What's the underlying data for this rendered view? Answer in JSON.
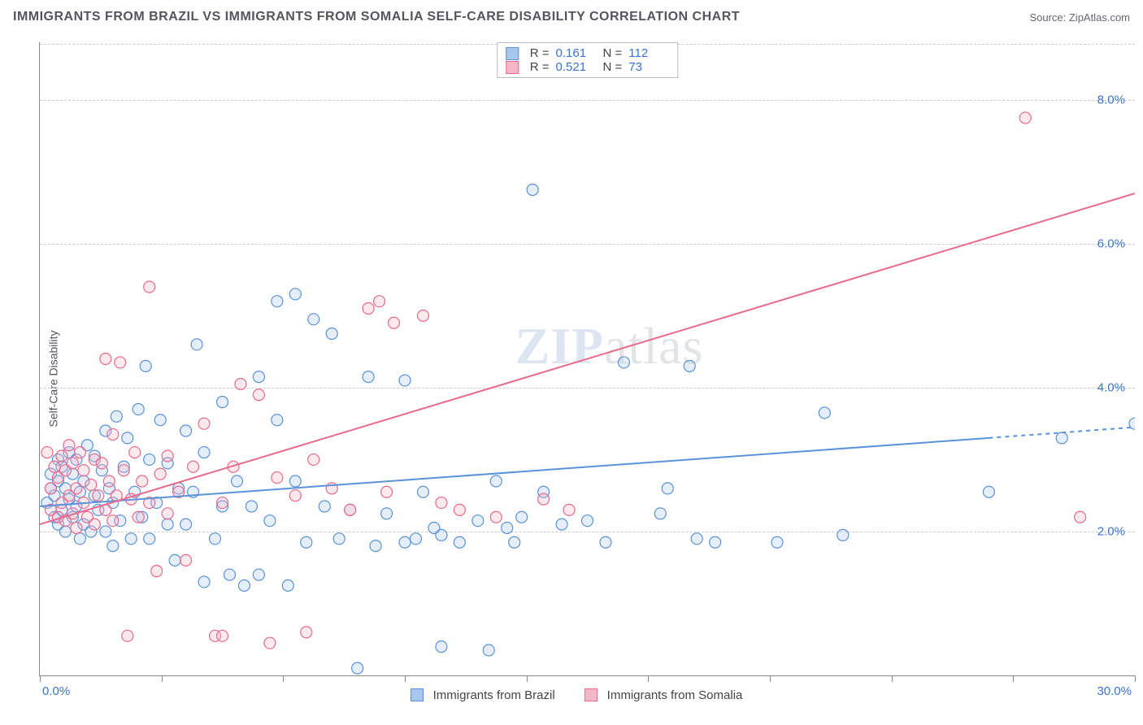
{
  "title": "IMMIGRANTS FROM BRAZIL VS IMMIGRANTS FROM SOMALIA SELF-CARE DISABILITY CORRELATION CHART",
  "source": "Source: ZipAtlas.com",
  "ylabel": "Self-Care Disability",
  "watermark_a": "ZIP",
  "watermark_b": "atlas",
  "chart": {
    "type": "scatter",
    "xlim": [
      0,
      30
    ],
    "ylim": [
      0,
      8.8
    ],
    "background_color": "#ffffff",
    "grid_color": "#cccccc",
    "grid_dash": "4 4",
    "y_gridlines": [
      2,
      4,
      6,
      8
    ],
    "y_tick_labels": [
      "2.0%",
      "4.0%",
      "6.0%",
      "8.0%"
    ],
    "x_minor_ticks": [
      0,
      3.33,
      6.67,
      10,
      13.33,
      16.67,
      20,
      23.33,
      26.67,
      30
    ],
    "x_axis_left_label": "0.0%",
    "x_axis_right_label": "30.0%",
    "axis_label_color": "#3973d4",
    "axis_label_fontsize": 15,
    "marker_radius": 7,
    "marker_stroke_width": 1.2,
    "marker_fill_opacity": 0.3,
    "line_width": 2,
    "series": [
      {
        "id": "brazil",
        "label": "Immigrants from Brazil",
        "color_stroke": "#5a93d8",
        "color_fill": "#a8c7ec",
        "R": "0.161",
        "N": "112",
        "trend": {
          "x0": 0,
          "y0": 2.35,
          "x1": 26,
          "y1": 3.3,
          "x_dash_to": 30,
          "y_dash_to": 3.45
        },
        "points": [
          [
            0.2,
            2.4
          ],
          [
            0.3,
            2.6
          ],
          [
            0.3,
            2.8
          ],
          [
            0.4,
            2.2
          ],
          [
            0.4,
            2.5
          ],
          [
            0.5,
            3.0
          ],
          [
            0.5,
            2.1
          ],
          [
            0.5,
            2.7
          ],
          [
            0.6,
            2.9
          ],
          [
            0.6,
            2.3
          ],
          [
            0.7,
            2.0
          ],
          [
            0.7,
            2.6
          ],
          [
            0.8,
            3.1
          ],
          [
            0.8,
            2.45
          ],
          [
            0.9,
            2.2
          ],
          [
            0.9,
            2.8
          ],
          [
            1.0,
            2.35
          ],
          [
            1.0,
            3.0
          ],
          [
            1.1,
            1.9
          ],
          [
            1.1,
            2.55
          ],
          [
            1.2,
            2.7
          ],
          [
            1.2,
            2.1
          ],
          [
            1.3,
            3.2
          ],
          [
            1.4,
            2.0
          ],
          [
            1.5,
            2.5
          ],
          [
            1.5,
            3.05
          ],
          [
            1.6,
            2.3
          ],
          [
            1.7,
            2.85
          ],
          [
            1.8,
            2.0
          ],
          [
            1.8,
            3.4
          ],
          [
            1.9,
            2.6
          ],
          [
            2.0,
            1.8
          ],
          [
            2.0,
            2.4
          ],
          [
            2.1,
            3.6
          ],
          [
            2.2,
            2.15
          ],
          [
            2.3,
            2.9
          ],
          [
            2.4,
            3.3
          ],
          [
            2.5,
            1.9
          ],
          [
            2.6,
            2.55
          ],
          [
            2.7,
            3.7
          ],
          [
            2.8,
            2.2
          ],
          [
            2.9,
            4.3
          ],
          [
            3.0,
            1.9
          ],
          [
            3.0,
            3.0
          ],
          [
            3.2,
            2.4
          ],
          [
            3.3,
            3.55
          ],
          [
            3.5,
            2.1
          ],
          [
            3.5,
            2.95
          ],
          [
            3.7,
            1.6
          ],
          [
            3.8,
            2.6
          ],
          [
            4.0,
            3.4
          ],
          [
            4.0,
            2.1
          ],
          [
            4.2,
            2.55
          ],
          [
            4.3,
            4.6
          ],
          [
            4.5,
            1.3
          ],
          [
            4.5,
            3.1
          ],
          [
            4.8,
            1.9
          ],
          [
            5.0,
            2.35
          ],
          [
            5.0,
            3.8
          ],
          [
            5.2,
            1.4
          ],
          [
            5.4,
            2.7
          ],
          [
            5.6,
            1.25
          ],
          [
            5.8,
            2.35
          ],
          [
            6.0,
            4.15
          ],
          [
            6.0,
            1.4
          ],
          [
            6.3,
            2.15
          ],
          [
            6.5,
            3.55
          ],
          [
            6.5,
            5.2
          ],
          [
            6.8,
            1.25
          ],
          [
            7.0,
            5.3
          ],
          [
            7.0,
            2.7
          ],
          [
            7.3,
            1.85
          ],
          [
            7.5,
            4.95
          ],
          [
            7.8,
            2.35
          ],
          [
            8.0,
            4.75
          ],
          [
            8.2,
            1.9
          ],
          [
            8.5,
            2.3
          ],
          [
            8.7,
            0.1
          ],
          [
            9.0,
            4.15
          ],
          [
            9.2,
            1.8
          ],
          [
            9.5,
            2.25
          ],
          [
            10.0,
            4.1
          ],
          [
            10.0,
            1.85
          ],
          [
            10.3,
            1.9
          ],
          [
            10.5,
            2.55
          ],
          [
            10.8,
            2.05
          ],
          [
            11.0,
            1.95
          ],
          [
            11.0,
            0.4
          ],
          [
            11.5,
            1.85
          ],
          [
            12.0,
            2.15
          ],
          [
            12.3,
            0.35
          ],
          [
            12.5,
            2.7
          ],
          [
            12.8,
            2.05
          ],
          [
            13.0,
            1.85
          ],
          [
            13.2,
            2.2
          ],
          [
            13.5,
            6.75
          ],
          [
            13.8,
            2.55
          ],
          [
            14.3,
            2.1
          ],
          [
            15.0,
            2.15
          ],
          [
            15.5,
            1.85
          ],
          [
            16.0,
            4.35
          ],
          [
            17.0,
            2.25
          ],
          [
            17.2,
            2.6
          ],
          [
            17.8,
            4.3
          ],
          [
            18.0,
            1.9
          ],
          [
            18.5,
            1.85
          ],
          [
            20.2,
            1.85
          ],
          [
            21.5,
            3.65
          ],
          [
            22.0,
            1.95
          ],
          [
            26.0,
            2.55
          ],
          [
            28.0,
            3.3
          ],
          [
            30.0,
            3.5
          ]
        ]
      },
      {
        "id": "somalia",
        "label": "Immigrants from Somalia",
        "color_stroke": "#e86a8c",
        "color_fill": "#f5b7c8",
        "R": "0.521",
        "N": "73",
        "trend": {
          "x0": 0,
          "y0": 2.1,
          "x1": 30,
          "y1": 6.7
        },
        "points": [
          [
            0.2,
            3.1
          ],
          [
            0.3,
            2.6
          ],
          [
            0.3,
            2.3
          ],
          [
            0.4,
            2.9
          ],
          [
            0.5,
            2.2
          ],
          [
            0.5,
            2.75
          ],
          [
            0.6,
            3.05
          ],
          [
            0.6,
            2.4
          ],
          [
            0.7,
            2.15
          ],
          [
            0.7,
            2.85
          ],
          [
            0.8,
            2.5
          ],
          [
            0.8,
            3.2
          ],
          [
            0.9,
            2.25
          ],
          [
            0.9,
            2.95
          ],
          [
            1.0,
            2.6
          ],
          [
            1.0,
            2.05
          ],
          [
            1.1,
            3.1
          ],
          [
            1.2,
            2.4
          ],
          [
            1.2,
            2.85
          ],
          [
            1.3,
            2.2
          ],
          [
            1.4,
            2.65
          ],
          [
            1.5,
            3.0
          ],
          [
            1.5,
            2.1
          ],
          [
            1.6,
            2.5
          ],
          [
            1.7,
            2.95
          ],
          [
            1.8,
            2.3
          ],
          [
            1.8,
            4.4
          ],
          [
            1.9,
            2.7
          ],
          [
            2.0,
            2.15
          ],
          [
            2.0,
            3.35
          ],
          [
            2.1,
            2.5
          ],
          [
            2.2,
            4.35
          ],
          [
            2.3,
            2.85
          ],
          [
            2.4,
            0.55
          ],
          [
            2.5,
            2.45
          ],
          [
            2.6,
            3.1
          ],
          [
            2.7,
            2.2
          ],
          [
            2.8,
            2.7
          ],
          [
            3.0,
            2.4
          ],
          [
            3.0,
            5.4
          ],
          [
            3.2,
            1.45
          ],
          [
            3.3,
            2.8
          ],
          [
            3.5,
            2.25
          ],
          [
            3.5,
            3.05
          ],
          [
            3.8,
            2.55
          ],
          [
            4.0,
            1.6
          ],
          [
            4.2,
            2.9
          ],
          [
            4.5,
            3.5
          ],
          [
            4.8,
            0.55
          ],
          [
            5.0,
            2.4
          ],
          [
            5.0,
            0.55
          ],
          [
            5.3,
            2.9
          ],
          [
            5.5,
            4.05
          ],
          [
            6.0,
            3.9
          ],
          [
            6.3,
            0.45
          ],
          [
            6.5,
            2.75
          ],
          [
            7.0,
            2.5
          ],
          [
            7.3,
            0.6
          ],
          [
            7.5,
            3.0
          ],
          [
            8.0,
            2.6
          ],
          [
            8.5,
            2.3
          ],
          [
            9.0,
            5.1
          ],
          [
            9.3,
            5.2
          ],
          [
            9.5,
            2.55
          ],
          [
            9.7,
            4.9
          ],
          [
            10.5,
            5.0
          ],
          [
            11.0,
            2.4
          ],
          [
            11.5,
            2.3
          ],
          [
            12.5,
            2.2
          ],
          [
            13.8,
            2.45
          ],
          [
            14.5,
            2.3
          ],
          [
            27.0,
            7.75
          ],
          [
            28.5,
            2.2
          ]
        ]
      }
    ]
  },
  "bottom_legend": [
    {
      "label": "Immigrants from Brazil",
      "fill": "#a8c7ec",
      "stroke": "#5a93d8"
    },
    {
      "label": "Immigrants from Somalia",
      "fill": "#f5b7c8",
      "stroke": "#e86a8c"
    }
  ],
  "top_legend_labels": {
    "R": "R  =",
    "N": "N  ="
  }
}
